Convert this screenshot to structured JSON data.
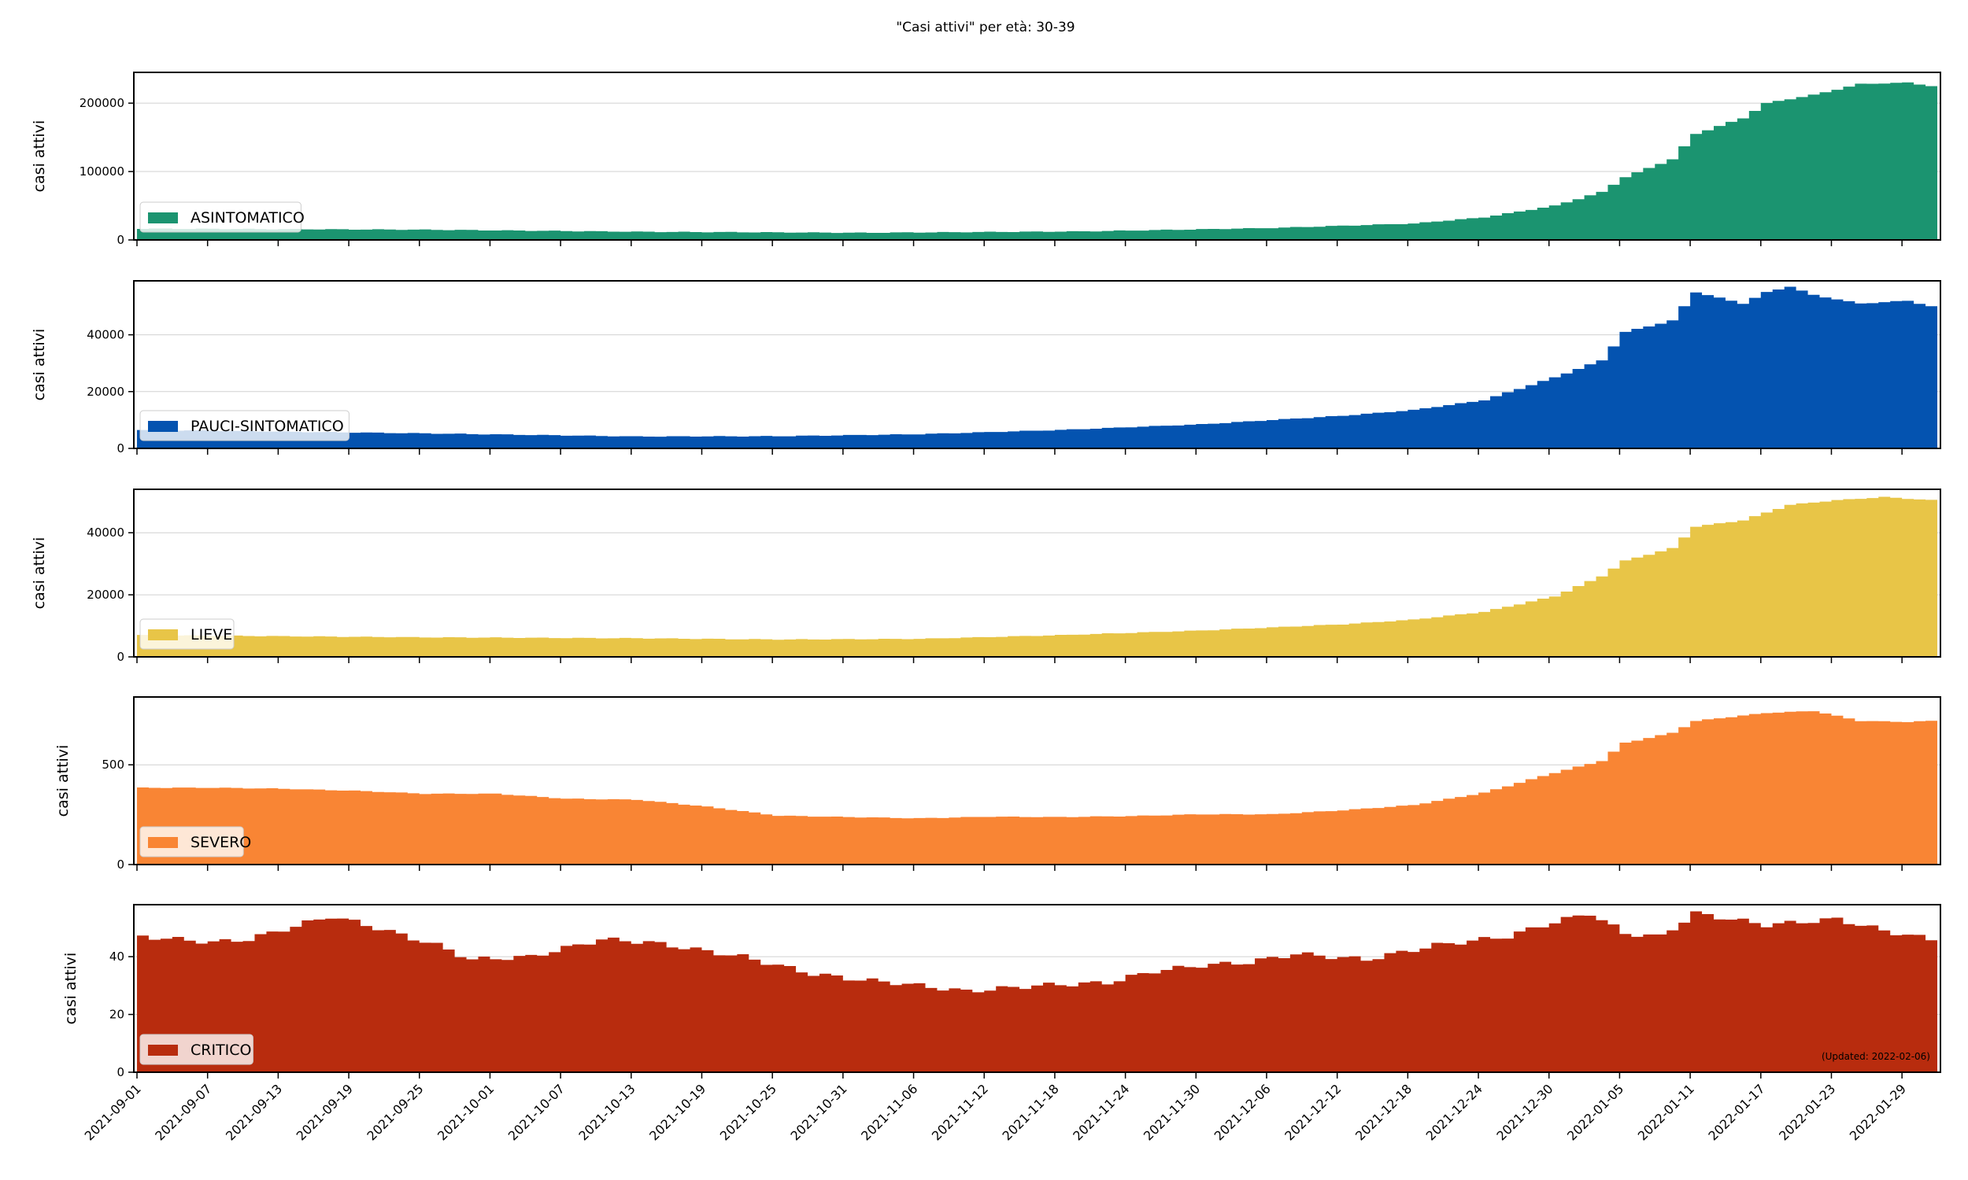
{
  "figure": {
    "title": "\"Casi attivi\" per età: 30-39",
    "footnote": "(Updated: 2022-02-06)"
  },
  "x_tick_labels": [
    "2021-09-01",
    "2021-09-07",
    "2021-09-13",
    "2021-09-19",
    "2021-09-25",
    "2021-10-01",
    "2021-10-07",
    "2021-10-13",
    "2021-10-19",
    "2021-10-25",
    "2021-10-31",
    "2021-11-06",
    "2021-11-12",
    "2021-11-18",
    "2021-11-24",
    "2021-11-30",
    "2021-12-06",
    "2021-12-12",
    "2021-12-18",
    "2021-12-24",
    "2021-12-30",
    "2022-01-05",
    "2022-01-11",
    "2022-01-17",
    "2022-01-23",
    "2022-01-29"
  ],
  "chart_data": [
    {
      "type": "area",
      "ylabel": "casi attivi",
      "legend": "ASINTOMATICO",
      "legend_placement": "lower-left",
      "color": "#1b9470",
      "grid": true,
      "ylim": [
        0,
        245000
      ],
      "yticks": [
        0,
        100000,
        200000
      ],
      "x_start": "2021-09-01",
      "x_end": "2022-01-31",
      "step_days": 1,
      "anchors": [
        [
          "2021-09-01",
          16500
        ],
        [
          "2021-09-25",
          15000
        ],
        [
          "2021-10-13",
          12000
        ],
        [
          "2021-11-01",
          10500
        ],
        [
          "2021-11-20",
          12500
        ],
        [
          "2021-12-06",
          17500
        ],
        [
          "2021-12-18",
          24000
        ],
        [
          "2021-12-24",
          33000
        ],
        [
          "2021-12-30",
          50000
        ],
        [
          "2022-01-03",
          70000
        ],
        [
          "2022-01-05",
          92000
        ],
        [
          "2022-01-09",
          118000
        ],
        [
          "2022-01-11",
          155000
        ],
        [
          "2022-01-15",
          178000
        ],
        [
          "2022-01-17",
          200000
        ],
        [
          "2022-01-21",
          212000
        ],
        [
          "2022-01-25",
          228000
        ],
        [
          "2022-01-29",
          230000
        ],
        [
          "2022-01-31",
          225000
        ]
      ]
    },
    {
      "type": "area",
      "ylabel": "casi attivi",
      "legend": "PAUCI-SINTOMATICO",
      "legend_placement": "lower-left",
      "color": "#0453b0",
      "grid": true,
      "ylim": [
        0,
        59000
      ],
      "yticks": [
        0,
        20000,
        40000
      ],
      "x_start": "2021-09-01",
      "x_end": "2022-01-31",
      "step_days": 1,
      "anchors": [
        [
          "2021-09-01",
          6500
        ],
        [
          "2021-09-25",
          5300
        ],
        [
          "2021-10-13",
          4200
        ],
        [
          "2021-10-25",
          4300
        ],
        [
          "2021-11-06",
          5000
        ],
        [
          "2021-11-18",
          6500
        ],
        [
          "2021-11-30",
          8500
        ],
        [
          "2021-12-12",
          11500
        ],
        [
          "2021-12-18",
          13500
        ],
        [
          "2021-12-24",
          17000
        ],
        [
          "2021-12-30",
          25000
        ],
        [
          "2022-01-03",
          31000
        ],
        [
          "2022-01-05",
          41000
        ],
        [
          "2022-01-09",
          45000
        ],
        [
          "2022-01-11",
          55000
        ],
        [
          "2022-01-13",
          53000
        ],
        [
          "2022-01-15",
          51000
        ],
        [
          "2022-01-17",
          55000
        ],
        [
          "2022-01-19",
          57000
        ],
        [
          "2022-01-21",
          54000
        ],
        [
          "2022-01-25",
          51000
        ],
        [
          "2022-01-29",
          52000
        ],
        [
          "2022-01-31",
          50000
        ]
      ]
    },
    {
      "type": "area",
      "ylabel": "casi attivi",
      "legend": "LIEVE",
      "legend_placement": "lower-left",
      "color": "#e8c547",
      "grid": true,
      "ylim": [
        0,
        54000
      ],
      "yticks": [
        0,
        20000,
        40000
      ],
      "x_start": "2021-09-01",
      "x_end": "2022-01-31",
      "step_days": 1,
      "anchors": [
        [
          "2021-09-01",
          7000
        ],
        [
          "2021-09-25",
          6300
        ],
        [
          "2021-10-13",
          6000
        ],
        [
          "2021-10-25",
          5600
        ],
        [
          "2021-11-06",
          5800
        ],
        [
          "2021-11-18",
          7000
        ],
        [
          "2021-11-30",
          8500
        ],
        [
          "2021-12-12",
          10500
        ],
        [
          "2021-12-18",
          12000
        ],
        [
          "2021-12-24",
          14500
        ],
        [
          "2021-12-30",
          19500
        ],
        [
          "2022-01-03",
          26000
        ],
        [
          "2022-01-05",
          31000
        ],
        [
          "2022-01-09",
          35000
        ],
        [
          "2022-01-11",
          42000
        ],
        [
          "2022-01-15",
          44000
        ],
        [
          "2022-01-19",
          49000
        ],
        [
          "2022-01-23",
          50500
        ],
        [
          "2022-01-27",
          51500
        ],
        [
          "2022-01-31",
          50500
        ]
      ]
    },
    {
      "type": "area",
      "ylabel": "casi attivi",
      "legend": "SEVERO",
      "legend_placement": "lower-left",
      "color": "#f98534",
      "grid": true,
      "ylim": [
        0,
        840
      ],
      "yticks": [
        0,
        500
      ],
      "x_start": "2021-09-01",
      "x_end": "2022-01-31",
      "step_days": 1,
      "anchors": [
        [
          "2021-09-01",
          385
        ],
        [
          "2021-09-07",
          385
        ],
        [
          "2021-09-13",
          380
        ],
        [
          "2021-09-19",
          370
        ],
        [
          "2021-09-25",
          355
        ],
        [
          "2021-10-01",
          355
        ],
        [
          "2021-10-07",
          330
        ],
        [
          "2021-10-13",
          325
        ],
        [
          "2021-10-19",
          290
        ],
        [
          "2021-10-25",
          245
        ],
        [
          "2021-10-31",
          238
        ],
        [
          "2021-11-06",
          232
        ],
        [
          "2021-11-12",
          240
        ],
        [
          "2021-11-18",
          238
        ],
        [
          "2021-11-24",
          243
        ],
        [
          "2021-11-30",
          252
        ],
        [
          "2021-12-06",
          252
        ],
        [
          "2021-12-12",
          272
        ],
        [
          "2021-12-18",
          298
        ],
        [
          "2021-12-24",
          360
        ],
        [
          "2021-12-30",
          460
        ],
        [
          "2022-01-03",
          520
        ],
        [
          "2022-01-05",
          610
        ],
        [
          "2022-01-09",
          660
        ],
        [
          "2022-01-11",
          720
        ],
        [
          "2022-01-17",
          760
        ],
        [
          "2022-01-21",
          770
        ],
        [
          "2022-01-25",
          720
        ],
        [
          "2022-01-29",
          715
        ],
        [
          "2022-01-31",
          720
        ]
      ]
    },
    {
      "type": "area",
      "ylabel": "casi attivi",
      "legend": "CRITICO",
      "legend_placement": "lower-left",
      "color": "#b82c0e",
      "grid": true,
      "ylim": [
        0,
        58
      ],
      "yticks": [
        0,
        20,
        40
      ],
      "x_start": "2021-09-01",
      "x_end": "2022-01-31",
      "step_days": 1,
      "anchors": [
        [
          "2021-09-01",
          47
        ],
        [
          "2021-09-07",
          45
        ],
        [
          "2021-09-10",
          46
        ],
        [
          "2021-09-17",
          54
        ],
        [
          "2021-09-20",
          51
        ],
        [
          "2021-09-26",
          44
        ],
        [
          "2021-09-29",
          39
        ],
        [
          "2021-10-04",
          40
        ],
        [
          "2021-10-10",
          46
        ],
        [
          "2021-10-14",
          45
        ],
        [
          "2021-10-22",
          40
        ],
        [
          "2021-10-28",
          34
        ],
        [
          "2021-11-01",
          32
        ],
        [
          "2021-11-04",
          31
        ],
        [
          "2021-11-10",
          28
        ],
        [
          "2021-11-16",
          30
        ],
        [
          "2021-11-22",
          31
        ],
        [
          "2021-11-26",
          35
        ],
        [
          "2021-11-30",
          37
        ],
        [
          "2021-12-04",
          38
        ],
        [
          "2021-12-08",
          41
        ],
        [
          "2021-12-14",
          39
        ],
        [
          "2021-12-20",
          44
        ],
        [
          "2021-12-26",
          47
        ],
        [
          "2021-12-30",
          52
        ],
        [
          "2022-01-02",
          55
        ],
        [
          "2022-01-05",
          48
        ],
        [
          "2022-01-08",
          47
        ],
        [
          "2022-01-11",
          55
        ],
        [
          "2022-01-17",
          51
        ],
        [
          "2022-01-23",
          53
        ],
        [
          "2022-01-27",
          49
        ],
        [
          "2022-01-31",
          46
        ]
      ]
    }
  ]
}
